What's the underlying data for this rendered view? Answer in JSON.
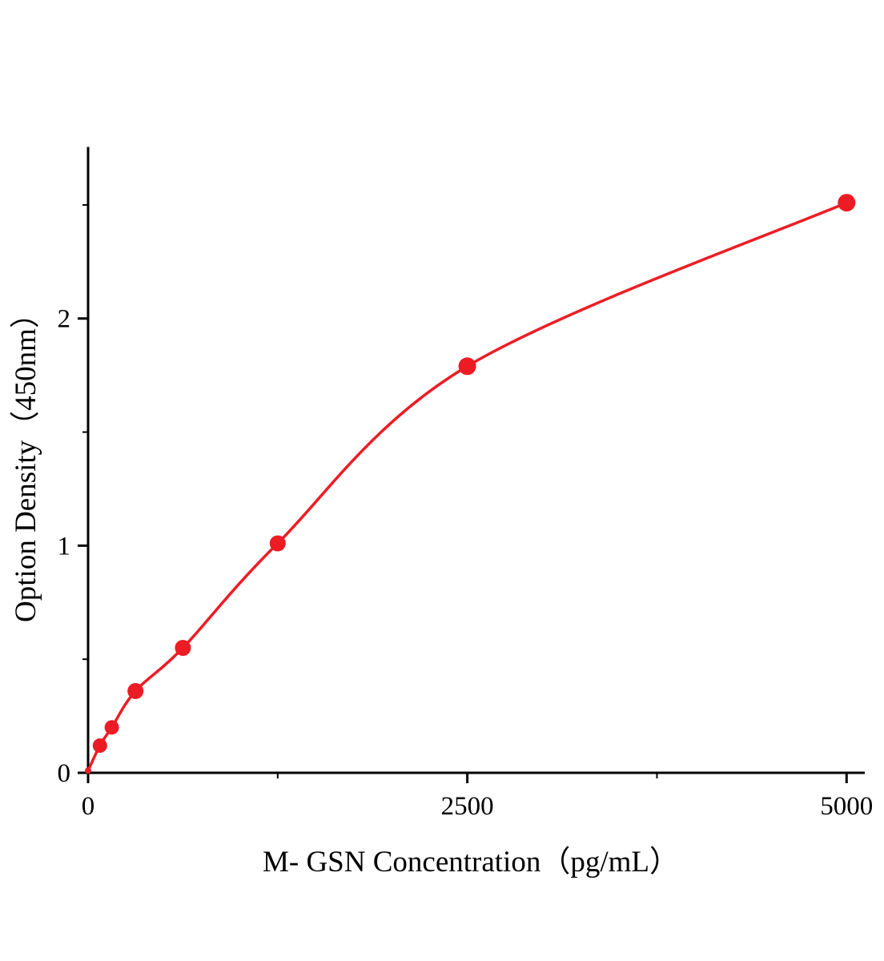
{
  "chart_data": {
    "type": "scatter",
    "title": "",
    "xlabel": "M- GSN Concentration（pg/mL）",
    "ylabel": "Option Density（450nm）",
    "x": [
      0,
      78.1,
      156.3,
      312.5,
      625,
      1250,
      2500,
      5000
    ],
    "y": [
      0.01,
      0.12,
      0.2,
      0.36,
      0.55,
      1.01,
      1.79,
      2.51
    ],
    "xlim": [
      0,
      5120
    ],
    "ylim": [
      0,
      2.75
    ],
    "x_ticks": [
      0,
      2500,
      5000
    ],
    "y_ticks": [
      0,
      1,
      2
    ],
    "x_minor_ticks": [
      1250,
      3750
    ],
    "y_minor_ticks": [
      0.5,
      1.5,
      2.5
    ],
    "legend": null,
    "grid": false,
    "curve_color": "#ed1c24",
    "point_color": "#ed1c24",
    "axis_color": "#000000",
    "point_radii": [
      4,
      9,
      9,
      10,
      10,
      10,
      11,
      11
    ]
  }
}
